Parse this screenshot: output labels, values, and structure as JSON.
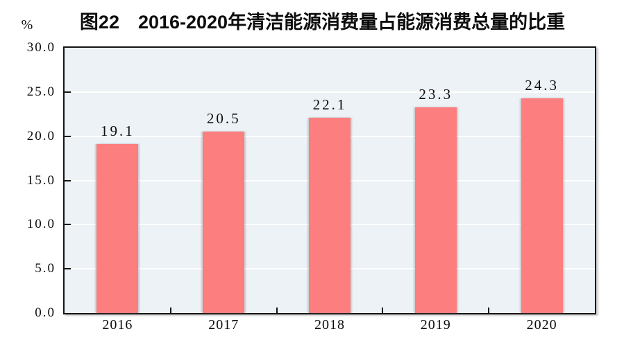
{
  "title": "图22　2016-2020年清洁能源消费量占能源消费总量的比重",
  "unit_label": "%",
  "colors": {
    "bar": "#FC7E7E",
    "plot_bg": "#EDF2F6",
    "grid": "#FFFFFF",
    "axis": "#141414",
    "text": "#0D0D0D"
  },
  "chart_data": {
    "type": "bar",
    "title": "图22　2016-2020年清洁能源消费量占能源消费总量的比重",
    "categories": [
      "2016",
      "2017",
      "2018",
      "2019",
      "2020"
    ],
    "values": [
      19.1,
      20.5,
      22.1,
      23.3,
      24.3
    ],
    "value_labels": [
      "19.1",
      "20.5",
      "22.1",
      "23.3",
      "24.3"
    ],
    "xlabel": "",
    "ylabel": "%",
    "ylim": [
      0,
      30
    ],
    "ytick_step": 5,
    "ytick_labels": [
      "0.0",
      "5.0",
      "10.0",
      "15.0",
      "20.0",
      "25.0",
      "30.0"
    ],
    "grid": "horizontal",
    "legend": "none"
  }
}
